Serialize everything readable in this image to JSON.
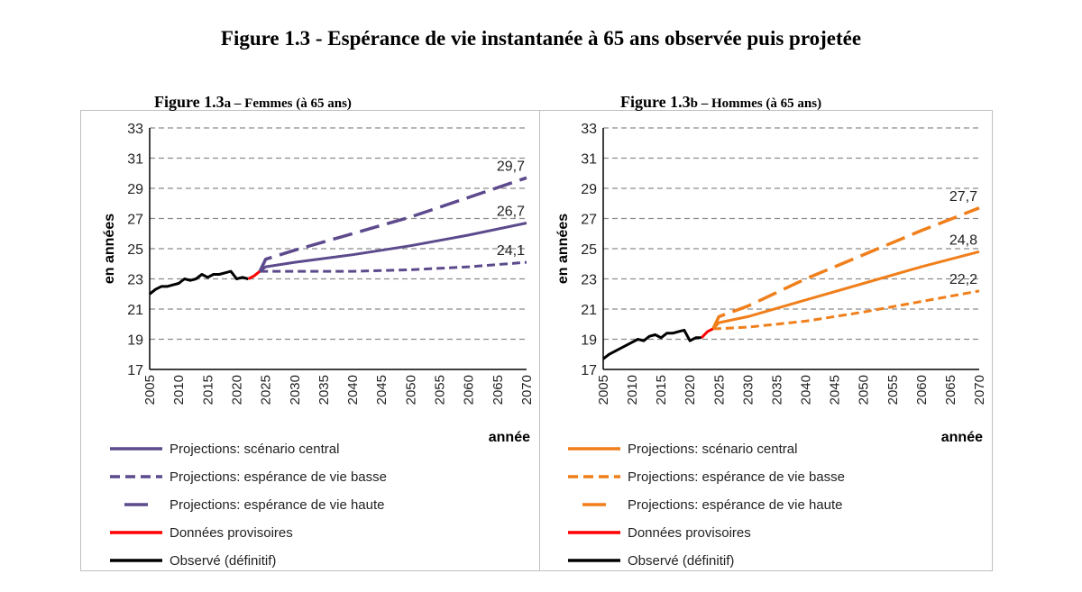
{
  "title": "Figure 1.3 - Espérance de vie instantanée à 65 ans observée puis projetée",
  "chart_data": [
    {
      "type": "line",
      "title_prefix": "Figure 1.3",
      "title_suffix": "a – Femmes (à 65 ans)",
      "xlabel": "année",
      "ylabel": "en années",
      "xlim": [
        2005,
        2070
      ],
      "ylim": [
        17,
        33
      ],
      "xticks": [
        "2005",
        "2010",
        "2015",
        "2020",
        "2025",
        "2030",
        "2035",
        "2040",
        "2045",
        "2050",
        "2055",
        "2060",
        "2065",
        "2070"
      ],
      "yticks": [
        "17",
        "19",
        "21",
        "23",
        "25",
        "27",
        "29",
        "31",
        "33"
      ],
      "grid": "horizontal-dashed",
      "projection_color": "#5c4a8c",
      "series": [
        {
          "name": "Observé (définitif)",
          "style": "solid",
          "color": "#000000",
          "x": [
            2005,
            2006,
            2007,
            2008,
            2009,
            2010,
            2011,
            2012,
            2013,
            2014,
            2015,
            2016,
            2017,
            2018,
            2019,
            2020,
            2021,
            2022
          ],
          "y": [
            22.0,
            22.3,
            22.5,
            22.5,
            22.6,
            22.7,
            23.0,
            22.9,
            23.0,
            23.3,
            23.1,
            23.3,
            23.3,
            23.4,
            23.5,
            23.0,
            23.1,
            23.0
          ]
        },
        {
          "name": "Données provisoires",
          "style": "solid",
          "color": "#ff0000",
          "x": [
            2022,
            2023,
            2024
          ],
          "y": [
            23.0,
            23.2,
            23.5
          ]
        },
        {
          "name": "Projections: scénario central",
          "style": "solid",
          "x": [
            2024,
            2025,
            2030,
            2040,
            2050,
            2060,
            2070
          ],
          "y": [
            23.5,
            23.8,
            24.1,
            24.6,
            25.2,
            25.9,
            26.7
          ]
        },
        {
          "name": "Projections: espérance de vie basse",
          "style": "dashed",
          "x": [
            2024,
            2025,
            2030,
            2040,
            2050,
            2060,
            2070
          ],
          "y": [
            23.5,
            23.5,
            23.5,
            23.5,
            23.6,
            23.8,
            24.1
          ]
        },
        {
          "name": "Projections: espérance de vie haute",
          "style": "long-dash",
          "x": [
            2024,
            2025,
            2030,
            2040,
            2050,
            2060,
            2070
          ],
          "y": [
            23.5,
            24.3,
            24.9,
            26.0,
            27.1,
            28.4,
            29.7
          ]
        }
      ],
      "annotations": [
        "29,7",
        "26,7",
        "24,1"
      ],
      "legend_position": "bottom-left"
    },
    {
      "type": "line",
      "title_prefix": "Figure 1.3",
      "title_suffix": "b – Hommes (à 65 ans)",
      "xlabel": "année",
      "ylabel": "en années",
      "xlim": [
        2005,
        2070
      ],
      "ylim": [
        17,
        33
      ],
      "xticks": [
        "2005",
        "2010",
        "2015",
        "2020",
        "2025",
        "2030",
        "2035",
        "2040",
        "2045",
        "2050",
        "2055",
        "2060",
        "2065",
        "2070"
      ],
      "yticks": [
        "17",
        "19",
        "21",
        "23",
        "25",
        "27",
        "29",
        "31",
        "33"
      ],
      "grid": "horizontal-dashed",
      "projection_color": "#f07f1b",
      "series": [
        {
          "name": "Observé (définitif)",
          "style": "solid",
          "color": "#000000",
          "x": [
            2005,
            2006,
            2007,
            2008,
            2009,
            2010,
            2011,
            2012,
            2013,
            2014,
            2015,
            2016,
            2017,
            2018,
            2019,
            2020,
            2021,
            2022
          ],
          "y": [
            17.7,
            18.0,
            18.2,
            18.4,
            18.6,
            18.8,
            19.0,
            18.9,
            19.2,
            19.3,
            19.1,
            19.4,
            19.4,
            19.5,
            19.6,
            18.9,
            19.1,
            19.1
          ]
        },
        {
          "name": "Données provisoires",
          "style": "solid",
          "color": "#ff0000",
          "x": [
            2022,
            2023,
            2024
          ],
          "y": [
            19.1,
            19.5,
            19.7
          ]
        },
        {
          "name": "Projections: scénario central",
          "style": "solid",
          "x": [
            2024,
            2025,
            2030,
            2040,
            2050,
            2060,
            2070
          ],
          "y": [
            19.7,
            20.1,
            20.5,
            21.6,
            22.7,
            23.8,
            24.8
          ]
        },
        {
          "name": "Projections: espérance de vie basse",
          "style": "dashed",
          "x": [
            2024,
            2025,
            2030,
            2040,
            2050,
            2060,
            2070
          ],
          "y": [
            19.7,
            19.7,
            19.8,
            20.2,
            20.8,
            21.5,
            22.2
          ]
        },
        {
          "name": "Projections: espérance de vie haute",
          "style": "long-dash",
          "x": [
            2024,
            2025,
            2030,
            2040,
            2050,
            2060,
            2070
          ],
          "y": [
            19.7,
            20.5,
            21.2,
            23.0,
            24.6,
            26.2,
            27.7
          ]
        }
      ],
      "annotations": [
        "27,7",
        "24,8",
        "22,2"
      ],
      "legend_position": "bottom-left"
    }
  ],
  "legend_labels": [
    "Projections: scénario central",
    "Projections: espérance de vie basse",
    "Projections: espérance de vie haute",
    "Données provisoires",
    "Observé (définitif)"
  ]
}
